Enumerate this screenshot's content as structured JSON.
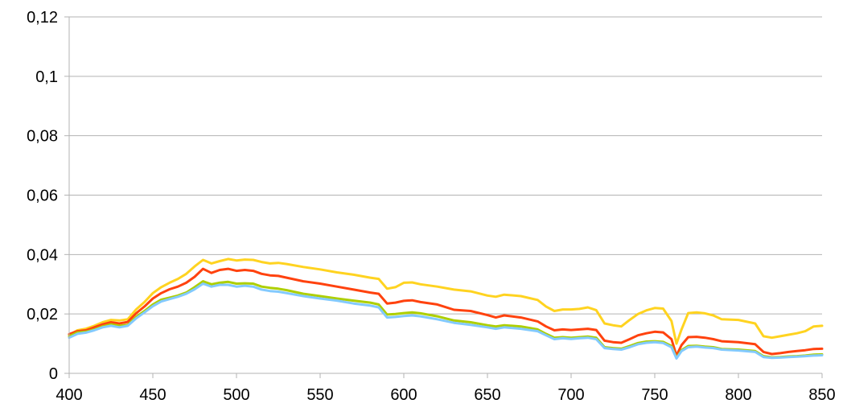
{
  "chart_data": {
    "type": "line",
    "title": "",
    "xlabel": "",
    "ylabel": "",
    "xlim": [
      400,
      850
    ],
    "ylim": [
      0,
      0.12
    ],
    "x_ticks": [
      400,
      450,
      500,
      550,
      600,
      650,
      700,
      750,
      800,
      850
    ],
    "x_tick_labels": [
      "400",
      "450",
      "500",
      "550",
      "600",
      "650",
      "700",
      "750",
      "800",
      "850"
    ],
    "y_ticks": [
      0,
      0.02,
      0.04,
      0.06,
      0.08,
      0.1,
      0.12
    ],
    "y_tick_labels": [
      "0",
      "0,02",
      "0,04",
      "0,06",
      "0,08",
      "0,1",
      "0,12"
    ],
    "grid": "horizontal",
    "legend": "none",
    "x": [
      400,
      405,
      410,
      415,
      420,
      425,
      430,
      435,
      440,
      445,
      450,
      455,
      460,
      465,
      470,
      475,
      480,
      485,
      490,
      495,
      500,
      505,
      510,
      515,
      520,
      525,
      530,
      540,
      550,
      560,
      570,
      580,
      585,
      590,
      595,
      600,
      605,
      610,
      620,
      630,
      640,
      650,
      655,
      660,
      670,
      680,
      685,
      690,
      695,
      700,
      705,
      710,
      715,
      720,
      725,
      730,
      735,
      740,
      745,
      750,
      755,
      760,
      763,
      766,
      770,
      775,
      780,
      785,
      790,
      800,
      810,
      815,
      820,
      825,
      830,
      835,
      840,
      845,
      850
    ],
    "series": [
      {
        "color": "#ffd320",
        "values": [
          0.013,
          0.0145,
          0.015,
          0.016,
          0.0172,
          0.018,
          0.0178,
          0.0182,
          0.0215,
          0.024,
          0.027,
          0.029,
          0.0305,
          0.0318,
          0.0335,
          0.036,
          0.0382,
          0.037,
          0.0378,
          0.0385,
          0.038,
          0.0383,
          0.0382,
          0.0375,
          0.037,
          0.0372,
          0.0368,
          0.0358,
          0.035,
          0.034,
          0.0332,
          0.0322,
          0.0318,
          0.0285,
          0.029,
          0.0305,
          0.0306,
          0.03,
          0.0292,
          0.0282,
          0.0276,
          0.0262,
          0.0258,
          0.0265,
          0.026,
          0.0247,
          0.0225,
          0.021,
          0.0215,
          0.0215,
          0.0217,
          0.0222,
          0.0213,
          0.0168,
          0.0162,
          0.0158,
          0.018,
          0.02,
          0.0212,
          0.022,
          0.0218,
          0.0176,
          0.01,
          0.0148,
          0.0203,
          0.0205,
          0.0202,
          0.0195,
          0.0182,
          0.018,
          0.0168,
          0.0125,
          0.012,
          0.0125,
          0.013,
          0.0135,
          0.0142,
          0.0158,
          0.016
        ]
      },
      {
        "color": "#ff420e",
        "values": [
          0.0132,
          0.0142,
          0.0145,
          0.0155,
          0.0165,
          0.0172,
          0.0168,
          0.0173,
          0.0202,
          0.0225,
          0.0252,
          0.027,
          0.0283,
          0.0292,
          0.0305,
          0.0325,
          0.0352,
          0.0338,
          0.0348,
          0.0352,
          0.0345,
          0.0348,
          0.0345,
          0.0335,
          0.033,
          0.0328,
          0.0322,
          0.031,
          0.0302,
          0.0292,
          0.0282,
          0.0272,
          0.0268,
          0.0235,
          0.0238,
          0.0244,
          0.0246,
          0.024,
          0.0232,
          0.0214,
          0.021,
          0.0196,
          0.0188,
          0.0195,
          0.0188,
          0.0175,
          0.0158,
          0.0145,
          0.0148,
          0.0146,
          0.0148,
          0.015,
          0.0146,
          0.011,
          0.0105,
          0.0103,
          0.0115,
          0.0128,
          0.0135,
          0.014,
          0.0138,
          0.0115,
          0.006,
          0.0095,
          0.0122,
          0.0123,
          0.012,
          0.0115,
          0.0108,
          0.0105,
          0.0098,
          0.0072,
          0.0065,
          0.0068,
          0.0072,
          0.0075,
          0.0078,
          0.0082,
          0.0083
        ]
      },
      {
        "color": "#aecf00",
        "values": [
          0.0125,
          0.0138,
          0.014,
          0.0148,
          0.0158,
          0.0165,
          0.016,
          0.0163,
          0.019,
          0.021,
          0.0232,
          0.0248,
          0.0255,
          0.0262,
          0.0272,
          0.029,
          0.031,
          0.03,
          0.0305,
          0.0308,
          0.0302,
          0.0303,
          0.0302,
          0.0292,
          0.0288,
          0.0285,
          0.028,
          0.0268,
          0.026,
          0.0252,
          0.0245,
          0.0238,
          0.0232,
          0.0198,
          0.02,
          0.0203,
          0.0205,
          0.0202,
          0.0192,
          0.0178,
          0.0172,
          0.0162,
          0.0158,
          0.0162,
          0.0158,
          0.0148,
          0.0133,
          0.012,
          0.0122,
          0.012,
          0.0122,
          0.0124,
          0.012,
          0.0088,
          0.0085,
          0.0083,
          0.0092,
          0.0102,
          0.0107,
          0.0108,
          0.0106,
          0.0092,
          0.0052,
          0.0078,
          0.0092,
          0.0093,
          0.009,
          0.0088,
          0.0082,
          0.008,
          0.0075,
          0.0058,
          0.0054,
          0.0055,
          0.0057,
          0.0058,
          0.006,
          0.0063,
          0.0064
        ]
      },
      {
        "color": "#83caff",
        "values": [
          0.012,
          0.0133,
          0.0137,
          0.0145,
          0.0155,
          0.016,
          0.0155,
          0.016,
          0.0185,
          0.0205,
          0.0226,
          0.0242,
          0.025,
          0.0258,
          0.0268,
          0.0283,
          0.0302,
          0.0292,
          0.0298,
          0.0298,
          0.0292,
          0.0295,
          0.0292,
          0.0282,
          0.0277,
          0.0275,
          0.027,
          0.026,
          0.0252,
          0.0245,
          0.0235,
          0.0228,
          0.0222,
          0.0188,
          0.019,
          0.0193,
          0.0195,
          0.0192,
          0.0182,
          0.017,
          0.0163,
          0.0155,
          0.015,
          0.0155,
          0.015,
          0.0142,
          0.0128,
          0.0115,
          0.0118,
          0.0116,
          0.0118,
          0.012,
          0.0115,
          0.0085,
          0.0082,
          0.008,
          0.0088,
          0.0098,
          0.0103,
          0.0105,
          0.0102,
          0.0088,
          0.005,
          0.0075,
          0.0088,
          0.009,
          0.0087,
          0.0085,
          0.008,
          0.0077,
          0.0072,
          0.0055,
          0.0052,
          0.0053,
          0.0055,
          0.0056,
          0.0058,
          0.006,
          0.0061
        ]
      }
    ]
  }
}
